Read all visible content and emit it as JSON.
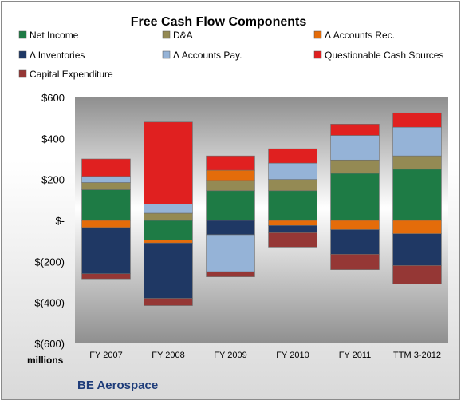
{
  "chart_data": {
    "type": "bar",
    "stacked": true,
    "title": "Free Cash Flow Components",
    "categories": [
      "FY 2007",
      "FY 2008",
      "FY 2009",
      "FY 2010",
      "FY 2011",
      "TTM 3-2012"
    ],
    "yticks": [
      "$600",
      "$400",
      "$200",
      "$-",
      "$(200)",
      "$(400)",
      "$(600)"
    ],
    "ylim": [
      -600,
      600
    ],
    "unit_label": "millions",
    "legend_placement": "top",
    "grid": false,
    "series": [
      {
        "name": "Net Income",
        "color": "#1e7b45",
        "values": [
          150,
          -95,
          145,
          145,
          230,
          250
        ]
      },
      {
        "name": "D&A",
        "color": "#948a54",
        "values": [
          35,
          35,
          50,
          55,
          65,
          65
        ]
      },
      {
        "name": "Δ Accounts Rec.",
        "color": "#e46c0a",
        "values": [
          -35,
          -15,
          50,
          -25,
          -45,
          -65
        ]
      },
      {
        "name": "Δ Inventories",
        "color": "#1f3864",
        "values": [
          -225,
          -270,
          -70,
          -35,
          -120,
          -155
        ]
      },
      {
        "name": "Δ Accounts Pay.",
        "color": "#95b3d7",
        "values": [
          30,
          45,
          -180,
          80,
          120,
          140
        ]
      },
      {
        "name": "Questionable Cash Sources",
        "color": "#e02020",
        "values": [
          85,
          400,
          70,
          70,
          55,
          70
        ]
      },
      {
        "name": "Capital Expenditure",
        "color": "#953735",
        "values": [
          -25,
          -35,
          -25,
          -70,
          -75,
          -90
        ]
      }
    ]
  },
  "footer": {
    "company": "BE Aerospace"
  }
}
